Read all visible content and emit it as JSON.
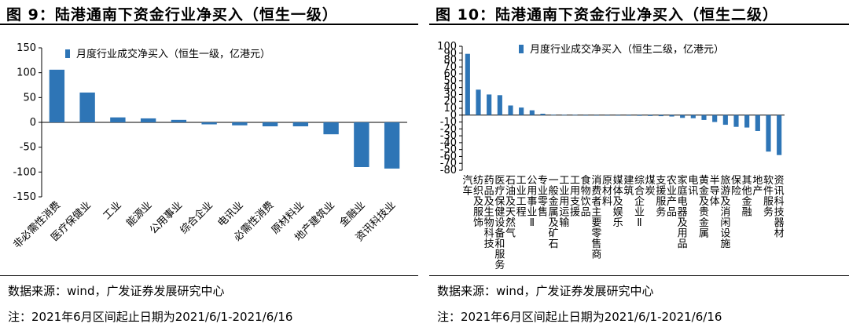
{
  "chart_data": [
    {
      "type": "bar",
      "title": "图 9：陆港通南下资金行业净买入（恒生一级）",
      "legend": "月度行业成交净买入（恒生一级，亿港元）",
      "ylim": [
        -150,
        150
      ],
      "yticks": [
        150,
        100,
        50,
        0,
        -50,
        -100,
        -150
      ],
      "color": "#2E75B6",
      "categories": [
        "非必需性消费",
        "医疗保健业",
        "工业",
        "能源业",
        "公用事业",
        "综合企业",
        "电讯业",
        "必需性消费",
        "原材料业",
        "地产建筑业",
        "金融业",
        "资讯科技业"
      ],
      "values": [
        106,
        60,
        10,
        8,
        5,
        -4,
        -6,
        -8,
        -8,
        -24,
        -90,
        -93
      ]
    },
    {
      "type": "bar",
      "title": "图 10：陆港通南下资金行业净买入（恒生二级）",
      "legend": "月度行业成交净买入（恒生二级，亿港元）",
      "ylim": [
        -80,
        100
      ],
      "yticks": [
        100,
        90,
        80,
        70,
        60,
        50,
        40,
        30,
        20,
        10,
        0,
        -10,
        -20,
        -30,
        -40,
        -50,
        -60,
        -70,
        -80
      ],
      "color": "#2E75B6",
      "categories": [
        "汽车",
        "纺织及服饰",
        "药品及生物科技",
        "医疗保健设备和服务",
        "石油及天然气",
        "工业工程",
        "公用事业Ⅱ",
        "专业零售",
        "一般金属及矿石",
        "工业用运输",
        "工用支援",
        "食物饮品",
        "消费者主要零售商",
        "原材料",
        "媒体及娱乐",
        "建筑",
        "综合企业Ⅱ",
        "煤炭",
        "支援服务",
        "农业产品",
        "家庭电器及用品",
        "电讯",
        "黄金及贵金属",
        "半导体",
        "旅游及消闲设施",
        "保险",
        "其他金融",
        "地产",
        "软件服务",
        "资讯科技器材"
      ],
      "values": [
        89,
        37,
        30,
        29,
        14,
        11,
        7,
        2,
        0.5,
        0.3,
        0.3,
        -0.3,
        -0.5,
        -0.5,
        -0.5,
        -0.8,
        -1,
        -1.2,
        -1.5,
        -2,
        -4,
        -4.5,
        -7,
        -10,
        -14,
        -17,
        -18,
        -23,
        -53,
        -58
      ]
    }
  ],
  "panel1": {
    "title": "图 9：陆港通南下资金行业净买入（恒生一级）",
    "source": "数据来源：wind，广发证券发展研究中心",
    "note": "注：2021年6月区间起止日期为2021/6/1-2021/6/16"
  },
  "panel2": {
    "title": "图 10：陆港通南下资金行业净买入（恒生二级）",
    "source": "数据来源：wind，广发证券发展研究中心",
    "note": "注：2021年6月区间起止日期为2021/6/1-2021/6/16"
  }
}
